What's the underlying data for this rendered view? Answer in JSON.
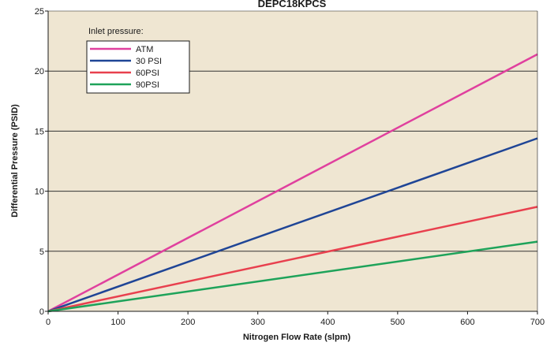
{
  "chart_data": {
    "type": "line",
    "title": "DEPC18KPCS",
    "xlabel": "Nitrogen Flow Rate (slpm)",
    "ylabel": "Differential Pressure (PSID)",
    "xlim": [
      0,
      700
    ],
    "ylim": [
      0,
      25
    ],
    "xticks": [
      "0",
      "100",
      "200",
      "300",
      "400",
      "500",
      "600",
      "700"
    ],
    "yticks": [
      "0",
      "5",
      "10",
      "15",
      "20",
      "25"
    ],
    "grid": "horizontal",
    "legend": {
      "title": "Inlet pressure:",
      "placement": "top-left"
    },
    "plot_background": "#efe6d2",
    "series": [
      {
        "name": "ATM",
        "color": "#e0409e",
        "x": [
          0,
          700
        ],
        "y": [
          0,
          21.4
        ]
      },
      {
        "name": "30 PSI",
        "color": "#1f4596",
        "x": [
          0,
          700
        ],
        "y": [
          0,
          14.4
        ]
      },
      {
        "name": "60PSI",
        "color": "#e8404e",
        "x": [
          0,
          700
        ],
        "y": [
          0,
          8.7
        ]
      },
      {
        "name": "90PSI",
        "color": "#1ea35a",
        "x": [
          0,
          700
        ],
        "y": [
          0,
          5.8
        ]
      }
    ]
  }
}
